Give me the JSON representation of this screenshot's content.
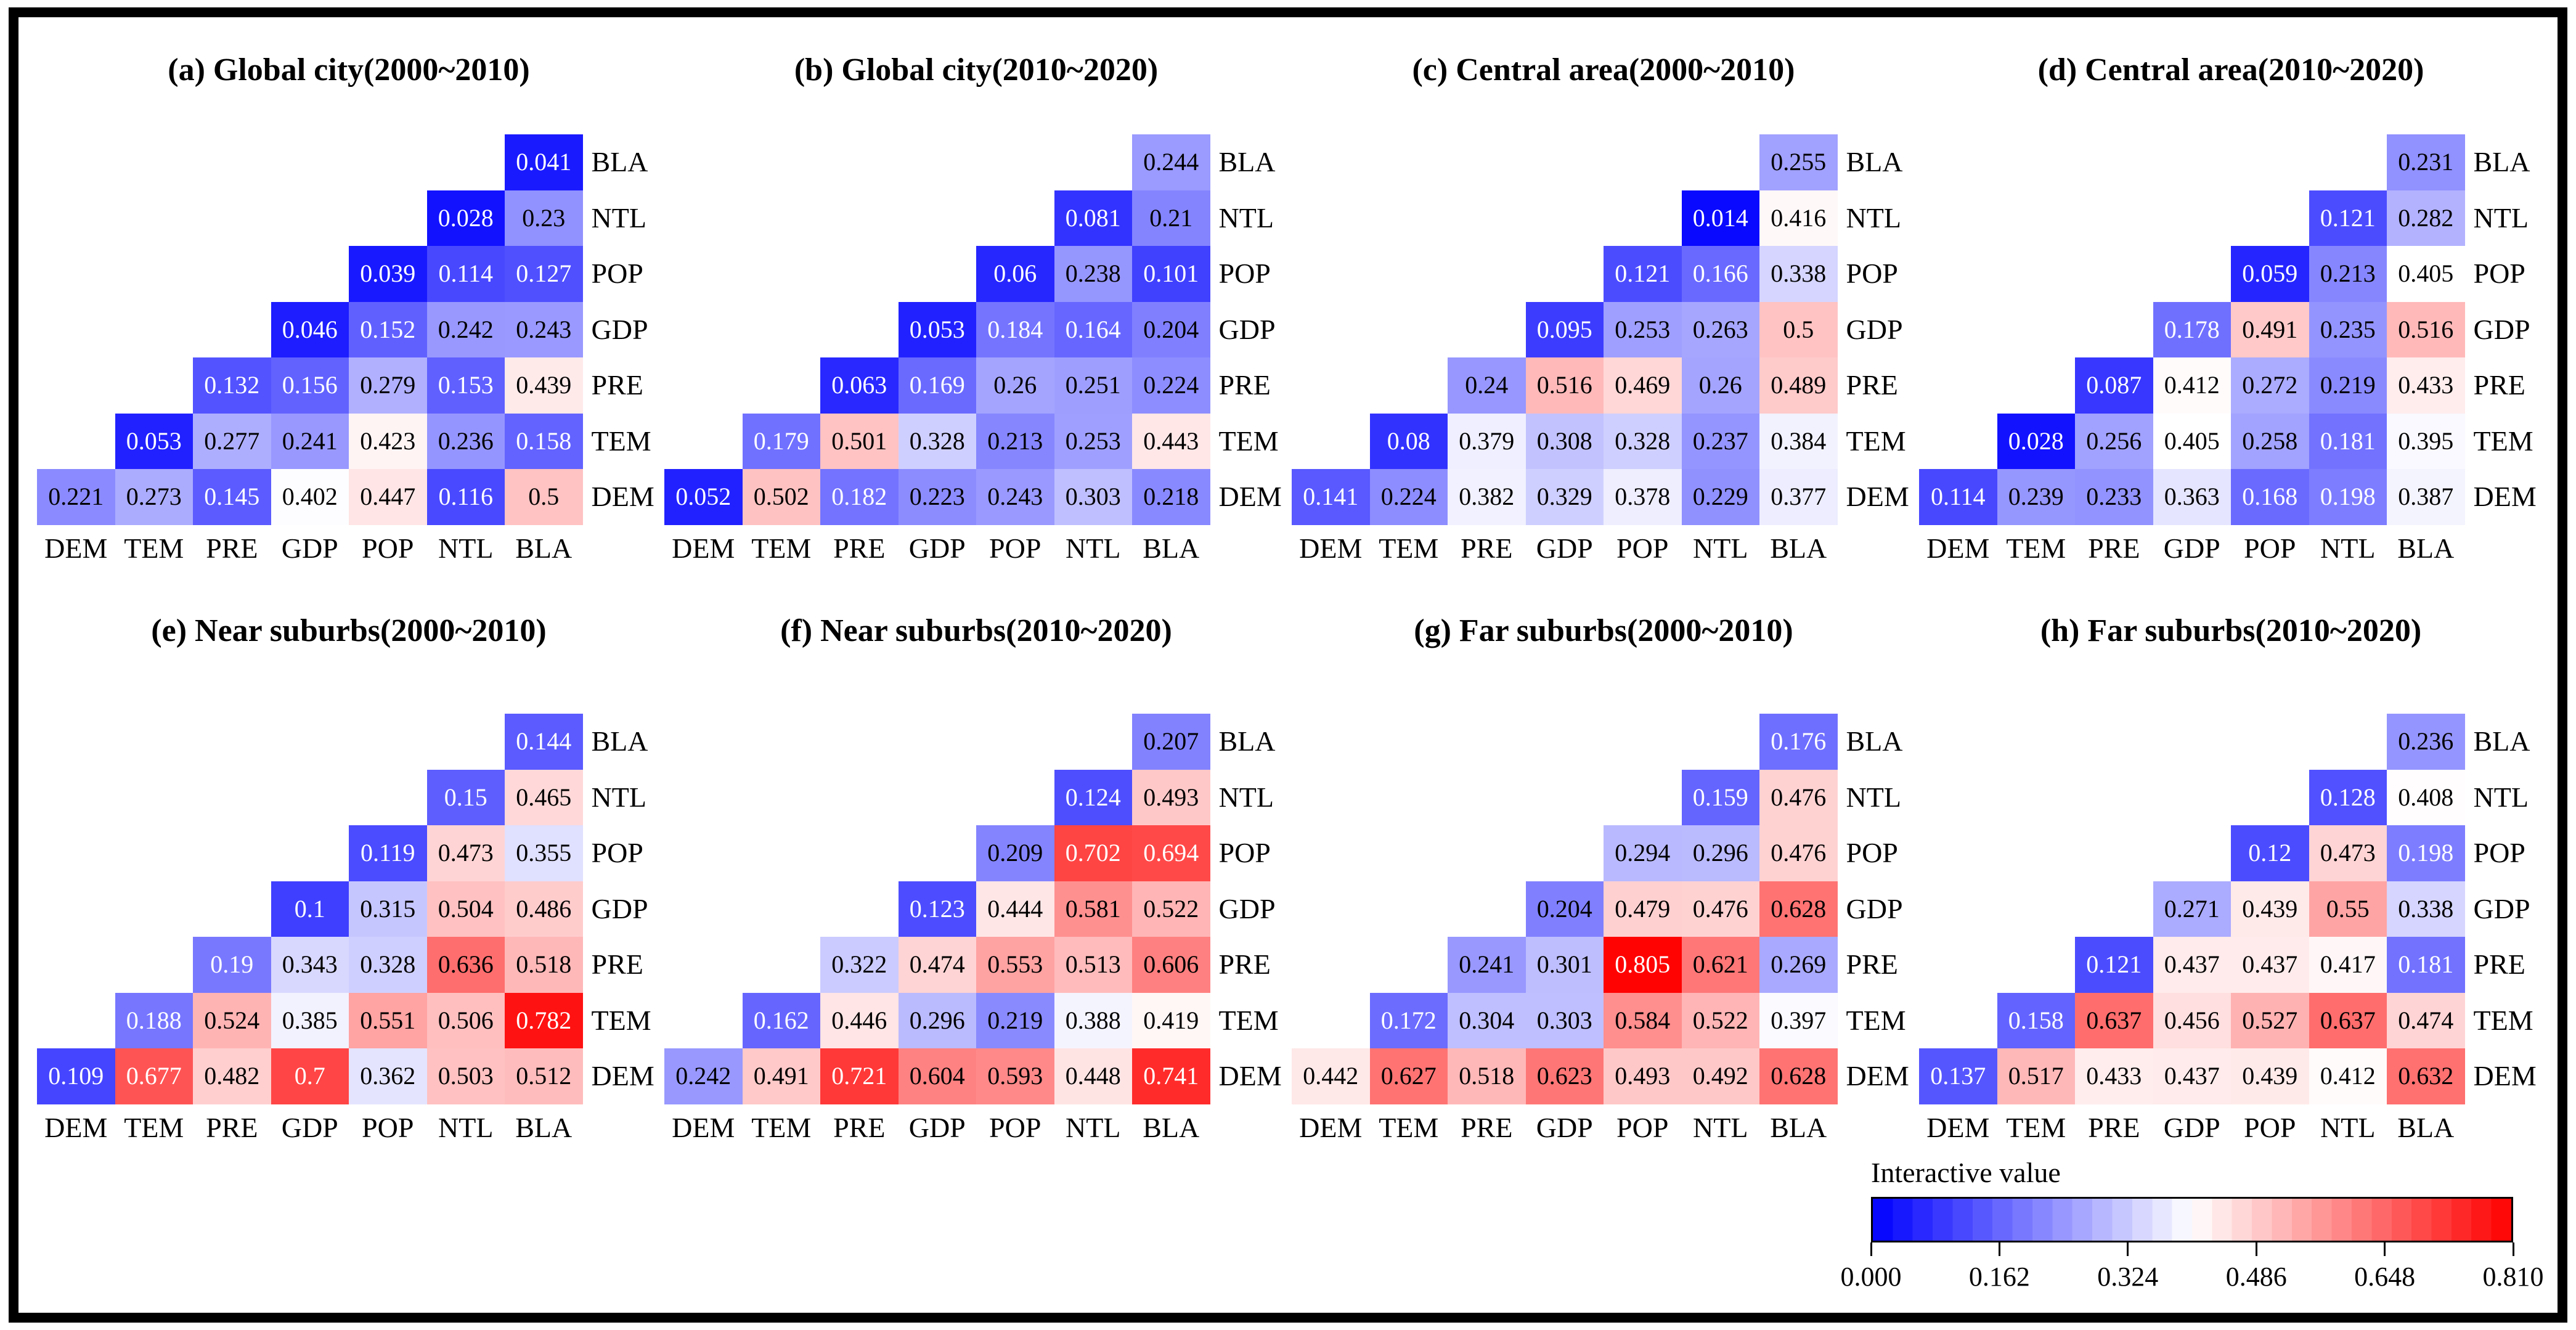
{
  "figure": {
    "background": "#ffffff",
    "border_color": "#000000"
  },
  "axis_variables": [
    "DEM",
    "TEM",
    "PRE",
    "GDP",
    "POP",
    "NTL",
    "BLA"
  ],
  "chart_data": [
    {
      "type": "heatmap",
      "panel": "a",
      "title": "(a) Global city(2000~2010)",
      "x_labels": [
        "DEM",
        "TEM",
        "PRE",
        "GDP",
        "POP",
        "NTL",
        "BLA"
      ],
      "y_labels_bottom_to_top": [
        "DEM",
        "TEM",
        "PRE",
        "GDP",
        "POP",
        "NTL",
        "BLA"
      ],
      "shape": "upper-triangle-with-diagonal; row i (bottom-to-top) holds columns i..6",
      "values_bottom_to_top": [
        [
          0.221,
          0.273,
          0.145,
          0.402,
          0.447,
          0.116,
          0.5
        ],
        [
          0.053,
          0.277,
          0.241,
          0.423,
          0.236,
          0.158
        ],
        [
          0.132,
          0.156,
          0.279,
          0.153,
          0.439
        ],
        [
          0.046,
          0.152,
          0.242,
          0.243
        ],
        [
          0.039,
          0.114,
          0.127
        ],
        [
          0.028,
          0.23
        ],
        [
          0.041
        ]
      ]
    },
    {
      "type": "heatmap",
      "panel": "b",
      "title": "(b) Global city(2010~2020)",
      "x_labels": [
        "DEM",
        "TEM",
        "PRE",
        "GDP",
        "POP",
        "NTL",
        "BLA"
      ],
      "y_labels_bottom_to_top": [
        "DEM",
        "TEM",
        "PRE",
        "GDP",
        "POP",
        "NTL",
        "BLA"
      ],
      "shape": "upper-triangle-with-diagonal; row i (bottom-to-top) holds columns i..6",
      "values_bottom_to_top": [
        [
          0.052,
          0.502,
          0.182,
          0.223,
          0.243,
          0.303,
          0.218
        ],
        [
          0.179,
          0.501,
          0.328,
          0.213,
          0.253,
          0.443
        ],
        [
          0.063,
          0.169,
          0.26,
          0.251,
          0.224
        ],
        [
          0.053,
          0.184,
          0.164,
          0.204
        ],
        [
          0.06,
          0.238,
          0.101
        ],
        [
          0.081,
          0.21
        ],
        [
          0.244
        ]
      ]
    },
    {
      "type": "heatmap",
      "panel": "c",
      "title": "(c) Central area(2000~2010)",
      "x_labels": [
        "DEM",
        "TEM",
        "PRE",
        "GDP",
        "POP",
        "NTL",
        "BLA"
      ],
      "y_labels_bottom_to_top": [
        "DEM",
        "TEM",
        "PRE",
        "GDP",
        "POP",
        "NTL",
        "BLA"
      ],
      "shape": "upper-triangle-with-diagonal; row i (bottom-to-top) holds columns i..6",
      "values_bottom_to_top": [
        [
          0.141,
          0.224,
          0.382,
          0.329,
          0.378,
          0.229,
          0.377
        ],
        [
          0.08,
          0.379,
          0.308,
          0.328,
          0.237,
          0.384
        ],
        [
          0.24,
          0.516,
          0.469,
          0.26,
          0.489
        ],
        [
          0.095,
          0.253,
          0.263,
          0.5
        ],
        [
          0.121,
          0.166,
          0.338
        ],
        [
          0.014,
          0.416
        ],
        [
          0.255
        ]
      ]
    },
    {
      "type": "heatmap",
      "panel": "d",
      "title": "(d) Central area(2010~2020)",
      "x_labels": [
        "DEM",
        "TEM",
        "PRE",
        "GDP",
        "POP",
        "NTL",
        "BLA"
      ],
      "y_labels_bottom_to_top": [
        "DEM",
        "TEM",
        "PRE",
        "GDP",
        "POP",
        "NTL",
        "BLA"
      ],
      "shape": "upper-triangle-with-diagonal; row i (bottom-to-top) holds columns i..6",
      "values_bottom_to_top": [
        [
          0.114,
          0.239,
          0.233,
          0.363,
          0.168,
          0.198,
          0.387
        ],
        [
          0.028,
          0.256,
          0.405,
          0.258,
          0.181,
          0.395
        ],
        [
          0.087,
          0.412,
          0.272,
          0.219,
          0.433
        ],
        [
          0.178,
          0.491,
          0.235,
          0.516
        ],
        [
          0.059,
          0.213,
          0.405
        ],
        [
          0.121,
          0.282
        ],
        [
          0.231
        ]
      ]
    },
    {
      "type": "heatmap",
      "panel": "e",
      "title": "(e) Near suburbs(2000~2010)",
      "x_labels": [
        "DEM",
        "TEM",
        "PRE",
        "GDP",
        "POP",
        "NTL",
        "BLA"
      ],
      "y_labels_bottom_to_top": [
        "DEM",
        "TEM",
        "PRE",
        "GDP",
        "POP",
        "NTL",
        "BLA"
      ],
      "shape": "upper-triangle-with-diagonal; row i (bottom-to-top) holds columns i..6",
      "values_bottom_to_top": [
        [
          0.109,
          0.677,
          0.482,
          0.7,
          0.362,
          0.503,
          0.512
        ],
        [
          0.188,
          0.524,
          0.385,
          0.551,
          0.506,
          0.782
        ],
        [
          0.19,
          0.343,
          0.328,
          0.636,
          0.518
        ],
        [
          0.1,
          0.315,
          0.504,
          0.486
        ],
        [
          0.119,
          0.473,
          0.355
        ],
        [
          0.15,
          0.465
        ],
        [
          0.144
        ]
      ]
    },
    {
      "type": "heatmap",
      "panel": "f",
      "title": "(f) Near suburbs(2010~2020)",
      "x_labels": [
        "DEM",
        "TEM",
        "PRE",
        "GDP",
        "POP",
        "NTL",
        "BLA"
      ],
      "y_labels_bottom_to_top": [
        "DEM",
        "TEM",
        "PRE",
        "GDP",
        "POP",
        "NTL",
        "BLA"
      ],
      "shape": "upper-triangle-with-diagonal; row i (bottom-to-top) holds columns i..6",
      "values_bottom_to_top": [
        [
          0.242,
          0.491,
          0.721,
          0.604,
          0.593,
          0.448,
          0.741
        ],
        [
          0.162,
          0.446,
          0.296,
          0.219,
          0.388,
          0.419
        ],
        [
          0.322,
          0.474,
          0.553,
          0.513,
          0.606
        ],
        [
          0.123,
          0.444,
          0.581,
          0.522
        ],
        [
          0.209,
          0.702,
          0.694
        ],
        [
          0.124,
          0.493
        ],
        [
          0.207
        ]
      ]
    },
    {
      "type": "heatmap",
      "panel": "g",
      "title": "(g) Far suburbs(2000~2010)",
      "x_labels": [
        "DEM",
        "TEM",
        "PRE",
        "GDP",
        "POP",
        "NTL",
        "BLA"
      ],
      "y_labels_bottom_to_top": [
        "DEM",
        "TEM",
        "PRE",
        "GDP",
        "POP",
        "NTL",
        "BLA"
      ],
      "shape": "upper-triangle-with-diagonal; row i (bottom-to-top) holds columns i..6",
      "values_bottom_to_top": [
        [
          0.442,
          0.627,
          0.518,
          0.623,
          0.493,
          0.492,
          0.628
        ],
        [
          0.172,
          0.304,
          0.303,
          0.584,
          0.522,
          0.397
        ],
        [
          0.241,
          0.301,
          0.805,
          0.621,
          0.269
        ],
        [
          0.204,
          0.479,
          0.476,
          0.628
        ],
        [
          0.294,
          0.296,
          0.476
        ],
        [
          0.159,
          0.476
        ],
        [
          0.176
        ]
      ]
    },
    {
      "type": "heatmap",
      "panel": "h",
      "title": "(h) Far suburbs(2010~2020)",
      "x_labels": [
        "DEM",
        "TEM",
        "PRE",
        "GDP",
        "POP",
        "NTL",
        "BLA"
      ],
      "y_labels_bottom_to_top": [
        "DEM",
        "TEM",
        "PRE",
        "GDP",
        "POP",
        "NTL",
        "BLA"
      ],
      "shape": "upper-triangle-with-diagonal; row i (bottom-to-top) holds columns i..6",
      "values_bottom_to_top": [
        [
          0.137,
          0.517,
          0.433,
          0.437,
          0.439,
          0.412,
          0.632
        ],
        [
          0.158,
          0.637,
          0.456,
          0.527,
          0.637,
          0.474
        ],
        [
          0.121,
          0.437,
          0.437,
          0.417,
          0.181
        ],
        [
          0.271,
          0.439,
          0.55,
          0.338
        ],
        [
          0.12,
          0.473,
          0.198
        ],
        [
          0.128,
          0.408
        ],
        [
          0.236
        ]
      ]
    }
  ],
  "colorbar": {
    "title": "Interactive value",
    "min": 0.0,
    "max": 0.81,
    "tick_labels": [
      "0.000",
      "0.162",
      "0.324",
      "0.486",
      "0.648",
      "0.810"
    ],
    "segments": 32,
    "color_low": "#0000ff",
    "color_mid": "#ffffff",
    "color_high": "#ff0000"
  },
  "value_text_style": {
    "white_text_below": 0.2,
    "white_text_at_or_above": 0.65,
    "black_text_otherwise": true
  }
}
